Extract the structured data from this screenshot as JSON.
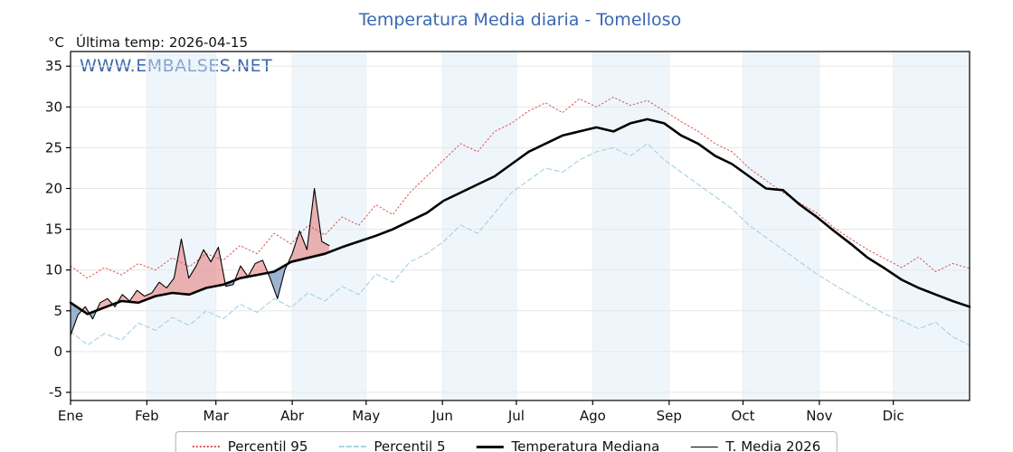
{
  "header": {
    "y_axis_unit": "°C",
    "last_temp_label": "Última temp: 2026-04-15",
    "watermark": "WWW.EMBALSES.NET"
  },
  "colors": {
    "title": "#3a68b2",
    "watermark": "#3a68b2",
    "axis": "#000000",
    "grid": "#e6e6e6",
    "grid_v": "#ededed",
    "month_band": "rgba(219,234,246,0.45)",
    "fill_above": "rgba(228,106,106,0.50)",
    "fill_below": "rgba(88,130,176,0.60)"
  },
  "chart_data": {
    "type": "line",
    "title": "Temperatura Media diaria - Tomelloso",
    "ylabel": "°C",
    "xlabel": "",
    "ylim": [
      -6,
      36.8
    ],
    "yticks": [
      -5,
      0,
      5,
      10,
      15,
      20,
      25,
      30,
      35
    ],
    "categories": [
      "Ene",
      "Feb",
      "Mar",
      "Abr",
      "May",
      "Jun",
      "Jul",
      "Ago",
      "Sep",
      "Oct",
      "Nov",
      "Dic"
    ],
    "month_start_days": [
      0,
      31,
      59,
      90,
      120,
      151,
      181,
      212,
      243,
      273,
      304,
      334
    ],
    "days_in_year": 365,
    "grid": true,
    "legend_position": "bottom-center",
    "fills": {
      "between": "T. Media 2026 vs Temperatura Mediana",
      "above_meaning": "2026 warmer than median (red)",
      "below_meaning": "2026 colder than median (blue)"
    },
    "series": [
      {
        "name": "Percentil 95",
        "color": "#dd5050",
        "dash": "1.5 2.8",
        "width": 1,
        "values": [
          10.5,
          9.0,
          10.3,
          9.4,
          10.8,
          10.0,
          11.5,
          10.4,
          12.0,
          11.2,
          13.0,
          12.0,
          14.5,
          13.2,
          15.5,
          14.3,
          16.5,
          15.5,
          18.0,
          16.8,
          19.5,
          21.5,
          23.5,
          25.5,
          24.5,
          27.0,
          28.0,
          29.5,
          30.5,
          29.3,
          31.0,
          30.0,
          31.2,
          30.2,
          30.8,
          29.5,
          28.2,
          27.0,
          25.5,
          24.5,
          22.5,
          21.0,
          19.5,
          18.2,
          17.0,
          15.2,
          13.8,
          12.5,
          11.4,
          10.3,
          11.6,
          9.8,
          10.8,
          10.2
        ]
      },
      {
        "name": "Percentil 5",
        "color": "#a9d4e5",
        "dash": "5 3.5",
        "width": 1.2,
        "values": [
          2.5,
          0.8,
          2.2,
          1.4,
          3.5,
          2.6,
          4.2,
          3.2,
          5.0,
          4.0,
          5.8,
          4.8,
          6.5,
          5.4,
          7.2,
          6.2,
          8.0,
          7.0,
          9.5,
          8.5,
          11.0,
          12.0,
          13.5,
          15.5,
          14.5,
          17.0,
          19.5,
          21.0,
          22.5,
          22.0,
          23.5,
          24.5,
          25.0,
          24.0,
          25.5,
          23.5,
          22.0,
          20.5,
          19.0,
          17.5,
          15.5,
          14.0,
          12.5,
          11.0,
          9.5,
          8.2,
          7.0,
          5.8,
          4.6,
          3.8,
          2.8,
          3.6,
          1.8,
          0.8
        ]
      },
      {
        "name": "Temperatura Mediana",
        "color": "#000000",
        "dash": "",
        "width": 2.6,
        "values": [
          6.0,
          4.6,
          5.4,
          6.2,
          6.0,
          6.8,
          7.2,
          7.0,
          7.8,
          8.2,
          9.0,
          9.4,
          9.8,
          11.0,
          11.5,
          12.0,
          12.8,
          13.5,
          14.2,
          15.0,
          16.0,
          17.0,
          18.5,
          19.5,
          20.5,
          21.5,
          23.0,
          24.5,
          25.5,
          26.5,
          27.0,
          27.5,
          27.0,
          28.0,
          28.5,
          28.0,
          26.5,
          25.5,
          24.0,
          23.0,
          21.5,
          20.0,
          19.8,
          18.0,
          16.5,
          14.8,
          13.2,
          11.5,
          10.2,
          8.8,
          7.8,
          7.0,
          6.2,
          5.5
        ]
      },
      {
        "name": "T. Media 2026",
        "color": "#000000",
        "dash": "",
        "width": 1.1,
        "x_days": [
          0,
          3,
          6,
          9,
          12,
          15,
          18,
          21,
          24,
          27,
          30,
          33,
          36,
          39,
          42,
          45,
          48,
          51,
          54,
          57,
          60,
          63,
          66,
          69,
          72,
          75,
          78,
          81,
          84,
          87,
          90,
          93,
          96,
          99,
          102,
          105
        ],
        "values": [
          2.0,
          4.5,
          5.5,
          4.0,
          6.0,
          6.5,
          5.5,
          7.0,
          6.2,
          7.5,
          6.8,
          7.2,
          8.5,
          7.8,
          9.0,
          13.8,
          9.0,
          10.5,
          12.5,
          11.0,
          12.8,
          8.0,
          8.2,
          10.5,
          9.2,
          10.8,
          11.2,
          9.0,
          6.5,
          10.0,
          12.0,
          14.8,
          12.5,
          20.0,
          13.5,
          13.0
        ]
      }
    ]
  }
}
